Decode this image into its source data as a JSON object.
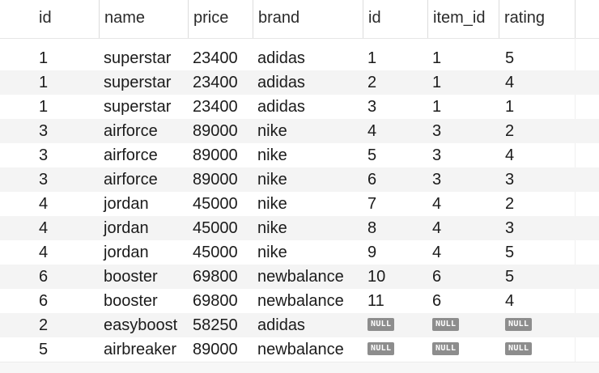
{
  "columns": [
    "id",
    "name",
    "price",
    "brand",
    "id",
    "item_id",
    "rating"
  ],
  "rows": [
    [
      "1",
      "superstar",
      "23400",
      "adidas",
      "1",
      "1",
      "5"
    ],
    [
      "1",
      "superstar",
      "23400",
      "adidas",
      "2",
      "1",
      "4"
    ],
    [
      "1",
      "superstar",
      "23400",
      "adidas",
      "3",
      "1",
      "1"
    ],
    [
      "3",
      "airforce",
      "89000",
      "nike",
      "4",
      "3",
      "2"
    ],
    [
      "3",
      "airforce",
      "89000",
      "nike",
      "5",
      "3",
      "4"
    ],
    [
      "3",
      "airforce",
      "89000",
      "nike",
      "6",
      "3",
      "3"
    ],
    [
      "4",
      "jordan",
      "45000",
      "nike",
      "7",
      "4",
      "2"
    ],
    [
      "4",
      "jordan",
      "45000",
      "nike",
      "8",
      "4",
      "3"
    ],
    [
      "4",
      "jordan",
      "45000",
      "nike",
      "9",
      "4",
      "5"
    ],
    [
      "6",
      "booster",
      "69800",
      "newbalance",
      "10",
      "6",
      "5"
    ],
    [
      "6",
      "booster",
      "69800",
      "newbalance",
      "11",
      "6",
      "4"
    ],
    [
      "2",
      "easyboost",
      "58250",
      "adidas",
      null,
      null,
      null
    ],
    [
      "5",
      "airbreaker",
      "89000",
      "newbalance",
      null,
      null,
      null
    ]
  ],
  "null_label": "NULL"
}
